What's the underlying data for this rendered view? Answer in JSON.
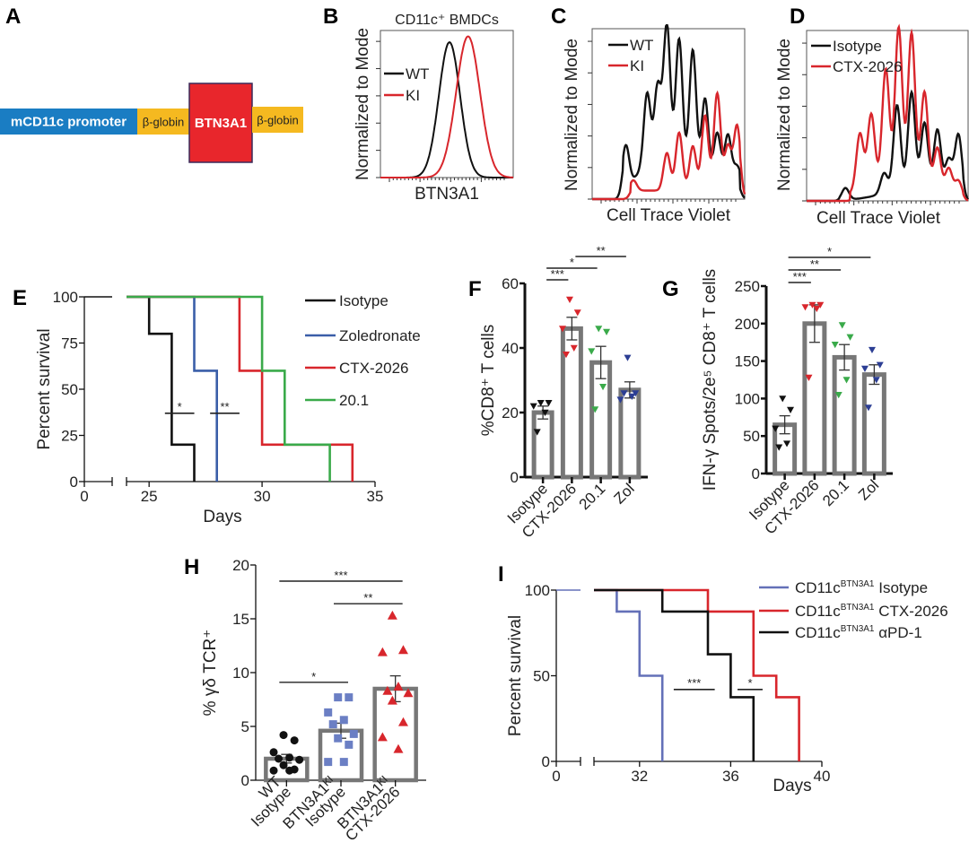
{
  "figure": {
    "panel_labels": [
      "A",
      "B",
      "C",
      "D",
      "E",
      "F",
      "G",
      "H",
      "I"
    ]
  },
  "panel_a": {
    "label": "A",
    "segments": [
      {
        "text": "mCD11c promoter",
        "color": "#1a7dc3",
        "text_color": "#ffffff"
      },
      {
        "text": "β-globin",
        "color": "#f5b920",
        "text_color": "#222222"
      },
      {
        "text": "BTN3A1",
        "color": "#e8262c",
        "text_color": "#ffffff"
      },
      {
        "text": "β-globin",
        "color": "#f5b920",
        "text_color": "#222222"
      }
    ]
  },
  "chart_data": [
    {
      "id": "B",
      "type": "line",
      "title": "CD11c⁺ BMDCs",
      "xlabel": "BTN3A1",
      "ylabel": "Normalized to Mode",
      "x_scale": "log (flow cytometry)",
      "legend": {
        "position": "top-left",
        "entries": [
          "WT",
          "KI"
        ]
      },
      "series": [
        {
          "name": "WT",
          "color": "#111111",
          "peak_x_fraction": 0.52,
          "peak_height": 0.92,
          "width": 0.08
        },
        {
          "name": "KI",
          "color": "#d8262c",
          "peak_x_fraction": 0.66,
          "peak_height": 0.96,
          "width": 0.09
        }
      ]
    },
    {
      "id": "C",
      "type": "line",
      "xlabel": "Cell Trace Violet",
      "ylabel": "Normalized to Mode",
      "legend": {
        "position": "top-left",
        "entries": [
          "WT",
          "KI"
        ]
      },
      "series": [
        {
          "name": "WT",
          "color": "#111111",
          "peaks": [
            [
              0.22,
              0.25
            ],
            [
              0.36,
              0.42
            ],
            [
              0.43,
              0.42
            ],
            [
              0.49,
              0.78
            ],
            [
              0.57,
              0.72
            ],
            [
              0.66,
              0.7
            ],
            [
              0.74,
              0.45
            ],
            [
              0.82,
              0.27
            ],
            [
              0.89,
              0.27
            ],
            [
              0.95,
              0.09
            ]
          ]
        },
        {
          "name": "KI",
          "color": "#d8262c",
          "peaks": [
            [
              0.27,
              0.06
            ],
            [
              0.49,
              0.22
            ],
            [
              0.57,
              0.34
            ],
            [
              0.66,
              0.26
            ],
            [
              0.74,
              0.44
            ],
            [
              0.82,
              0.57
            ],
            [
              0.89,
              0.26
            ],
            [
              0.95,
              0.38
            ]
          ]
        }
      ]
    },
    {
      "id": "D",
      "type": "line",
      "xlabel": "Cell Trace Violet",
      "ylabel": "Normalized to Mode",
      "legend": {
        "position": "top-left",
        "entries": [
          "Isotype",
          "CTX-2026"
        ]
      },
      "series": [
        {
          "name": "Isotype",
          "color": "#111111",
          "peaks": [
            [
              0.24,
              0.07
            ],
            [
              0.48,
              0.12
            ],
            [
              0.56,
              0.5
            ],
            [
              0.65,
              0.56
            ],
            [
              0.73,
              0.38
            ],
            [
              0.81,
              0.35
            ],
            [
              0.88,
              0.19
            ],
            [
              0.94,
              0.35
            ]
          ]
        },
        {
          "name": "CTX-2026",
          "color": "#d8262c",
          "peaks": [
            [
              0.33,
              0.33
            ],
            [
              0.4,
              0.42
            ],
            [
              0.49,
              0.66
            ],
            [
              0.57,
              0.9
            ],
            [
              0.65,
              0.88
            ],
            [
              0.73,
              0.56
            ],
            [
              0.81,
              0.26
            ],
            [
              0.88,
              0.16
            ],
            [
              0.94,
              0.1
            ]
          ]
        }
      ]
    },
    {
      "id": "E",
      "type": "line",
      "subtype": "kaplan-meier",
      "xlabel": "Days",
      "ylabel": "Percent survival",
      "xticks": [
        "0",
        "25",
        "30",
        "35"
      ],
      "yticks": [
        "0",
        "25",
        "50",
        "75",
        "100"
      ],
      "xlim": [
        0,
        35
      ],
      "x_break": [
        0,
        24
      ],
      "ylim": [
        0,
        100
      ],
      "legend": {
        "position": "right",
        "entries": [
          "Isotype",
          "Zoledronate",
          "CTX-2026",
          "20.1"
        ]
      },
      "series": [
        {
          "name": "Isotype",
          "color": "#111111",
          "steps": [
            [
              0,
              100
            ],
            [
              25,
              80
            ],
            [
              26,
              20
            ],
            [
              27,
              0
            ]
          ]
        },
        {
          "name": "Zoledronate",
          "color": "#3a5ea8",
          "steps": [
            [
              0,
              100
            ],
            [
              27,
              60
            ],
            [
              28,
              0
            ]
          ]
        },
        {
          "name": "CTX-2026",
          "color": "#d8262c",
          "steps": [
            [
              0,
              100
            ],
            [
              29,
              60
            ],
            [
              30,
              20
            ],
            [
              34,
              0
            ]
          ]
        },
        {
          "name": "20.1",
          "color": "#3aaa4a",
          "steps": [
            [
              0,
              100
            ],
            [
              30,
              60
            ],
            [
              31,
              20
            ],
            [
              33,
              0
            ]
          ]
        }
      ],
      "annotations": [
        {
          "text": "*",
          "x_range": [
            25.7,
            27.0
          ],
          "y": 37
        },
        {
          "text": "**",
          "x_range": [
            27.7,
            29.0
          ],
          "y": 37
        }
      ]
    },
    {
      "id": "F",
      "type": "bar",
      "ylabel": "%CD8⁺ T cells",
      "categories": [
        "Isotype",
        "CTX-2026",
        "20.1",
        "Zol"
      ],
      "values": [
        20,
        46,
        35.5,
        27
      ],
      "errors": [
        2,
        3.5,
        5,
        2.5
      ],
      "ylim": [
        0,
        60
      ],
      "yticks": [
        "0",
        "20",
        "40",
        "60"
      ],
      "point_colors": [
        "#111111",
        "#d8262c",
        "#3aaa4a",
        "#2c3e94"
      ],
      "points": [
        [
          23,
          23,
          22,
          20,
          14
        ],
        [
          55,
          51,
          46,
          40,
          38
        ],
        [
          46,
          45,
          39,
          28,
          21
        ],
        [
          37,
          26,
          24,
          25,
          26
        ]
      ],
      "annotations": [
        {
          "text": "***",
          "from": 0,
          "to": 1,
          "level": 0
        },
        {
          "text": "*",
          "from": 0,
          "to": 2,
          "level": 1
        },
        {
          "text": "**",
          "from": 1,
          "to": 3,
          "level": 2
        }
      ]
    },
    {
      "id": "G",
      "type": "bar",
      "ylabel": "IFN-γ Spots/2e⁵ CD8⁺ T cells",
      "categories": [
        "Isotype",
        "CTX-2026",
        "20.1",
        "Zol"
      ],
      "values": [
        65,
        200,
        155,
        132
      ],
      "errors": [
        12,
        25,
        17,
        13
      ],
      "ylim": [
        0,
        250
      ],
      "yticks": [
        "0",
        "50",
        "100",
        "150",
        "200",
        "250"
      ],
      "point_colors": [
        "#111111",
        "#d8262c",
        "#3aaa4a",
        "#2c3e94"
      ],
      "points": [
        [
          100,
          85,
          60,
          40,
          35
        ],
        [
          225,
          225,
          222,
          220,
          128
        ],
        [
          198,
          182,
          172,
          125,
          105
        ],
        [
          165,
          145,
          140,
          125,
          88
        ]
      ],
      "annotations": [
        {
          "text": "***",
          "from": 0,
          "to": 1,
          "level": 0
        },
        {
          "text": "**",
          "from": 0,
          "to": 2,
          "level": 1
        },
        {
          "text": "*",
          "from": 0,
          "to": 3,
          "level": 2
        }
      ]
    },
    {
      "id": "H",
      "type": "bar",
      "ylabel": "% γδ TCR⁺",
      "categories": [
        "WT Isotype",
        "BTN3A1ᴷᴵ Isotype",
        "BTN3A1ᴷᴵ CTX-2026"
      ],
      "values": [
        2.0,
        4.6,
        8.5
      ],
      "errors": [
        0.4,
        0.7,
        1.2
      ],
      "ylim": [
        0,
        20
      ],
      "yticks": [
        "0",
        "5",
        "10",
        "15",
        "20"
      ],
      "point_colors": [
        "#111111",
        "#6b7fc4",
        "#d8262c"
      ],
      "point_shapes": [
        "circle",
        "square",
        "triangle"
      ],
      "points": [
        [
          4.2,
          3.7,
          2.6,
          2.1,
          2.0,
          1.9,
          1.4,
          1.0,
          0.9,
          0.9
        ],
        [
          7.7,
          7.7,
          6.3,
          5.6,
          5.2,
          4.3,
          3.9,
          3.3,
          1.7,
          1.7
        ],
        [
          15.3,
          12.1,
          11.9,
          8.7,
          8.3,
          8.1,
          7.4,
          5.4,
          4.0,
          2.9
        ]
      ],
      "annotations": [
        {
          "text": "*",
          "from": 0,
          "to": 1,
          "y": 9.1
        },
        {
          "text": "**",
          "from": 1,
          "to": 2,
          "y": 16.4
        },
        {
          "text": "***",
          "from": 0,
          "to": 2,
          "y": 18.5
        }
      ]
    },
    {
      "id": "I",
      "type": "line",
      "subtype": "kaplan-meier",
      "xlabel": "Days",
      "ylabel": "Percent survival",
      "xticks": [
        "0",
        "32",
        "36",
        "40"
      ],
      "yticks": [
        "0",
        "50",
        "100"
      ],
      "xlim": [
        0,
        40
      ],
      "x_break": [
        0,
        30
      ],
      "ylim": [
        0,
        100
      ],
      "legend": {
        "position": "top-right",
        "entries": [
          "CD11cᴮᵀᴺ³ᴬ¹ Isotype",
          "CD11cᴮᵀᴺ³ᴬ¹ CTX-2026",
          "CD11cᴮᵀᴺ³ᴬ¹ αPD-1"
        ]
      },
      "legend_items": [
        {
          "base": "CD11c",
          "sup": "BTN3A1",
          "suffix": " Isotype"
        },
        {
          "base": "CD11c",
          "sup": "BTN3A1",
          "suffix": " CTX-2026"
        },
        {
          "base": "CD11c",
          "sup": "BTN3A1",
          "suffix": " αPD-1"
        }
      ],
      "series": [
        {
          "name": "CD11c BTN3A1 Isotype",
          "color": "#6470b8",
          "steps": [
            [
              0,
              100
            ],
            [
              31,
              87.5
            ],
            [
              32,
              50
            ],
            [
              33,
              0
            ]
          ]
        },
        {
          "name": "CD11c BTN3A1 CTX-2026",
          "color": "#d8262c",
          "steps": [
            [
              0,
              100
            ],
            [
              35,
              87.5
            ],
            [
              37,
              50
            ],
            [
              38,
              37.5
            ],
            [
              39,
              0
            ]
          ]
        },
        {
          "name": "CD11c BTN3A1 αPD-1",
          "color": "#111111",
          "steps": [
            [
              0,
              100
            ],
            [
              33,
              87.5
            ],
            [
              35,
              62.5
            ],
            [
              36,
              37.5
            ],
            [
              37,
              0
            ]
          ]
        }
      ],
      "annotations": [
        {
          "text": "***",
          "x_range": [
            33.5,
            35.3
          ],
          "y": 42
        },
        {
          "text": "*",
          "x_range": [
            36.3,
            37.4
          ],
          "y": 42
        }
      ]
    }
  ]
}
